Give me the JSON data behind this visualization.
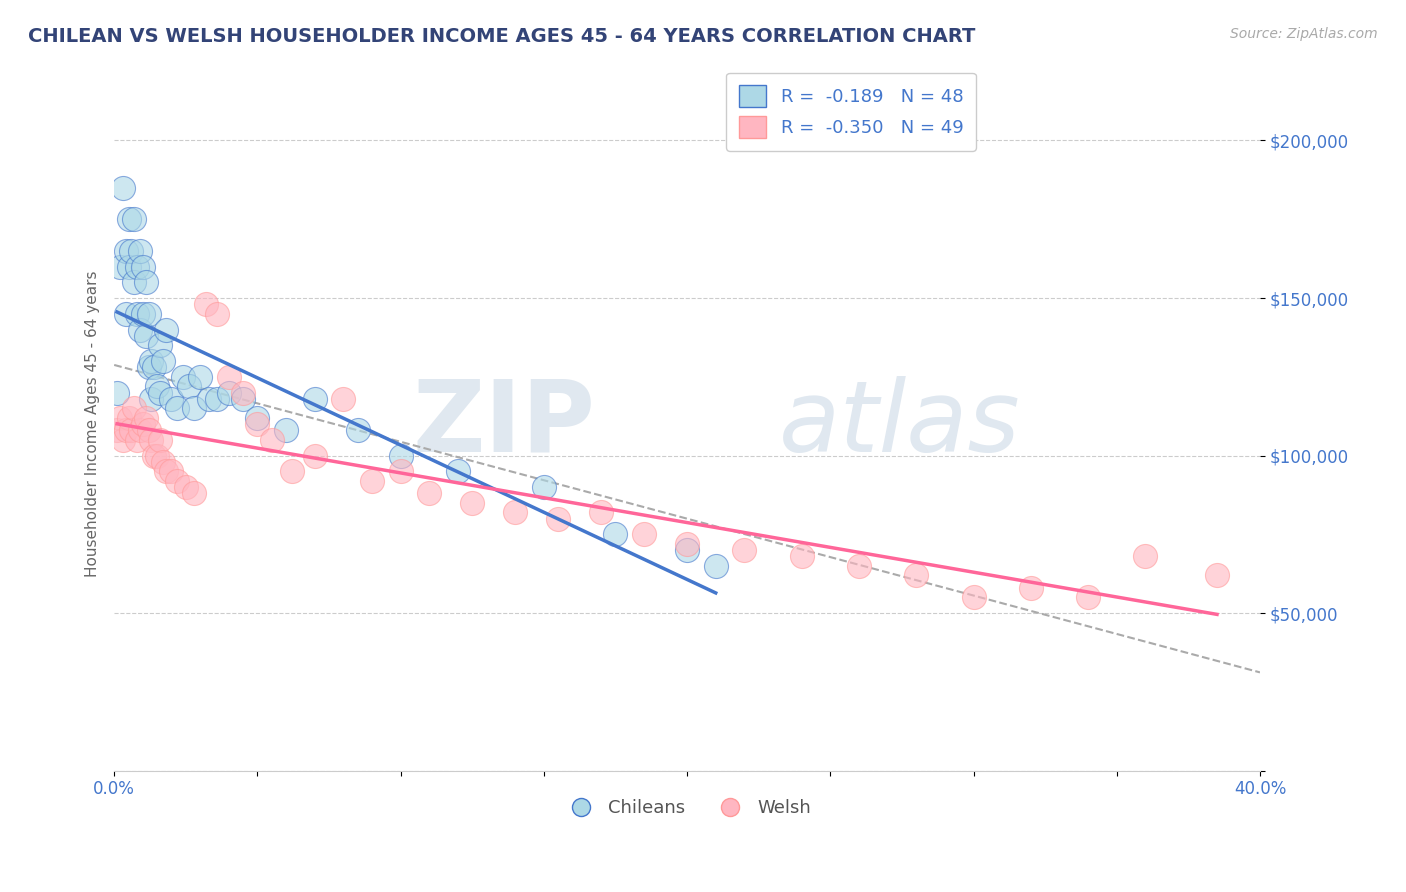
{
  "title": "CHILEAN VS WELSH HOUSEHOLDER INCOME AGES 45 - 64 YEARS CORRELATION CHART",
  "source_text": "Source: ZipAtlas.com",
  "ylabel": "Householder Income Ages 45 - 64 years",
  "xlim": [
    0.0,
    0.4
  ],
  "ylim": [
    0,
    220000
  ],
  "grid_color": "#cccccc",
  "background_color": "#ffffff",
  "chilean_color": "#add8e6",
  "welsh_color": "#ffb6c1",
  "chilean_line_color": "#4477cc",
  "welsh_line_color": "#ff6699",
  "trendline_color": "#aaaaaa",
  "chileans_x": [
    0.001,
    0.002,
    0.003,
    0.004,
    0.004,
    0.005,
    0.005,
    0.006,
    0.007,
    0.007,
    0.008,
    0.008,
    0.009,
    0.009,
    0.01,
    0.01,
    0.011,
    0.011,
    0.012,
    0.012,
    0.013,
    0.013,
    0.014,
    0.015,
    0.016,
    0.016,
    0.017,
    0.018,
    0.02,
    0.022,
    0.024,
    0.026,
    0.028,
    0.03,
    0.033,
    0.036,
    0.04,
    0.045,
    0.05,
    0.06,
    0.07,
    0.085,
    0.1,
    0.12,
    0.15,
    0.175,
    0.2,
    0.21
  ],
  "chileans_y": [
    120000,
    160000,
    185000,
    165000,
    145000,
    160000,
    175000,
    165000,
    175000,
    155000,
    160000,
    145000,
    165000,
    140000,
    160000,
    145000,
    155000,
    138000,
    145000,
    128000,
    130000,
    118000,
    128000,
    122000,
    135000,
    120000,
    130000,
    140000,
    118000,
    115000,
    125000,
    122000,
    115000,
    125000,
    118000,
    118000,
    120000,
    118000,
    112000,
    108000,
    118000,
    108000,
    100000,
    95000,
    90000,
    75000,
    70000,
    65000
  ],
  "welsh_x": [
    0.001,
    0.002,
    0.003,
    0.004,
    0.005,
    0.006,
    0.007,
    0.008,
    0.009,
    0.01,
    0.011,
    0.012,
    0.013,
    0.014,
    0.015,
    0.016,
    0.017,
    0.018,
    0.02,
    0.022,
    0.025,
    0.028,
    0.032,
    0.036,
    0.04,
    0.045,
    0.05,
    0.055,
    0.062,
    0.07,
    0.08,
    0.09,
    0.1,
    0.11,
    0.125,
    0.14,
    0.155,
    0.17,
    0.185,
    0.2,
    0.22,
    0.24,
    0.26,
    0.28,
    0.3,
    0.32,
    0.34,
    0.36,
    0.385
  ],
  "welsh_y": [
    108000,
    112000,
    105000,
    108000,
    112000,
    108000,
    115000,
    105000,
    108000,
    110000,
    112000,
    108000,
    105000,
    100000,
    100000,
    105000,
    98000,
    95000,
    95000,
    92000,
    90000,
    88000,
    148000,
    145000,
    125000,
    120000,
    110000,
    105000,
    95000,
    100000,
    118000,
    92000,
    95000,
    88000,
    85000,
    82000,
    80000,
    82000,
    75000,
    72000,
    70000,
    68000,
    65000,
    62000,
    55000,
    58000,
    55000,
    68000,
    62000
  ]
}
